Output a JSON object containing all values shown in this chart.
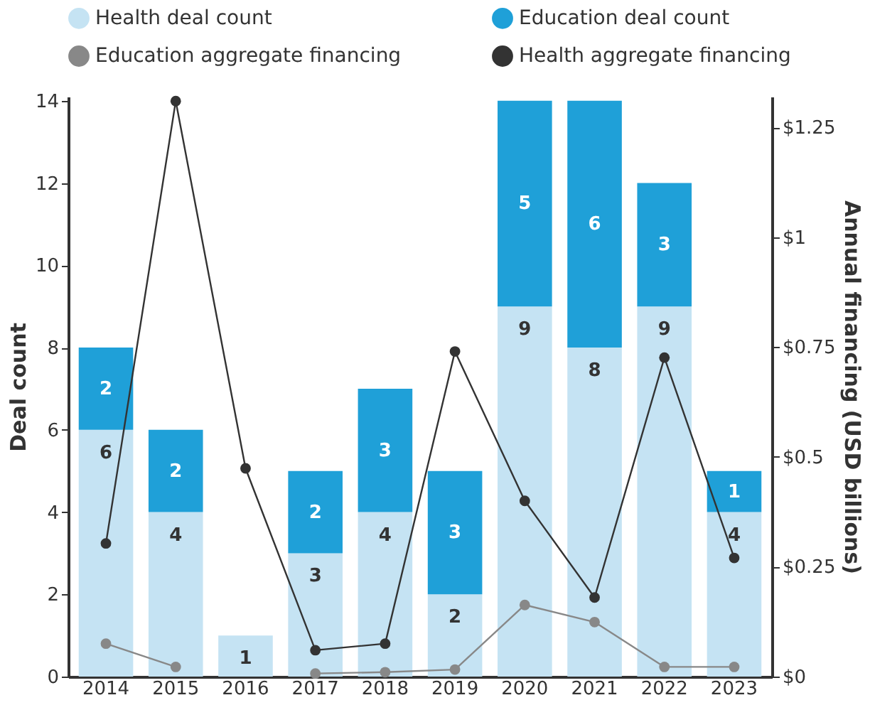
{
  "chart_data": {
    "type": "bar",
    "stacked": true,
    "categories": [
      "2014",
      "2015",
      "2016",
      "2017",
      "2018",
      "2019",
      "2020",
      "2021",
      "2022",
      "2023"
    ],
    "ylabel": "Deal count",
    "y2label": "Annual financing (USD billions)",
    "ylim": [
      0,
      14.1
    ],
    "yticks": [
      0,
      2,
      4,
      6,
      8,
      10,
      12,
      14
    ],
    "y2lim": [
      0,
      1.32
    ],
    "y2ticks": [
      {
        "value": 0,
        "label": "$0"
      },
      {
        "value": 0.25,
        "label": "$0.25"
      },
      {
        "value": 0.5,
        "label": "$0.5"
      },
      {
        "value": 0.75,
        "label": "$0.75"
      },
      {
        "value": 1,
        "label": "$1"
      },
      {
        "value": 1.25,
        "label": "$1.25"
      }
    ],
    "series": [
      {
        "name": "Health deal count",
        "color": "#c5e3f3",
        "values": [
          6,
          4,
          1,
          3,
          4,
          2,
          9,
          8,
          9,
          4
        ],
        "value_labels": [
          "6",
          "4",
          "1",
          "3",
          "4",
          "2",
          "9",
          "8",
          "9",
          "4"
        ]
      },
      {
        "name": "Education deal count",
        "color": "#1fa0d8",
        "values": [
          2,
          2,
          null,
          2,
          3,
          3,
          5,
          6,
          3,
          1
        ],
        "value_labels": [
          "2",
          "2",
          null,
          "2",
          "3",
          "3",
          "5",
          "6",
          "3",
          "1"
        ]
      },
      {
        "name": "Education aggregate financing",
        "color": "#888888",
        "type": "line",
        "axis": "y2",
        "values": [
          0.075,
          0.022,
          null,
          0.007,
          0.01,
          0.016,
          0.163,
          0.124,
          0.022,
          0.022
        ]
      },
      {
        "name": "Health aggregate financing",
        "color": "#333333",
        "type": "line",
        "axis": "y2",
        "values": [
          0.303,
          1.31,
          0.474,
          0.06,
          0.075,
          0.74,
          0.4,
          0.18,
          0.726,
          0.27
        ]
      }
    ],
    "legend": "top",
    "grid": false,
    "marker": "circle"
  }
}
